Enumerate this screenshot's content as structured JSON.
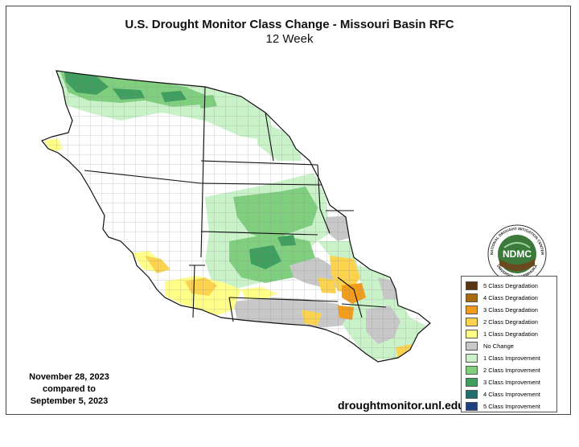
{
  "title": "U.S. Drought Monitor Class Change - Missouri Basin RFC",
  "subtitle": "12 Week",
  "date_compare": {
    "line1": "November 28, 2023",
    "line2": "compared to",
    "line3": "September 5, 2023"
  },
  "website": "droughtmonitor.unl.edu",
  "logo": {
    "center_text": "NDMC",
    "ring_text_top": "NATIONAL DROUGHT MITIGATION CENTER",
    "ring_text_bottom": "UNIVERSITY OF NEBRASKA"
  },
  "legend": [
    {
      "label": "5 Class Degradation",
      "color": "#5a3511"
    },
    {
      "label": "4 Class Degradation",
      "color": "#a8680e"
    },
    {
      "label": "3 Class Degradation",
      "color": "#f39c1b"
    },
    {
      "label": "2 Class Degradation",
      "color": "#fbd34e"
    },
    {
      "label": "1 Class Degradation",
      "color": "#ffff88"
    },
    {
      "label": "No Change",
      "color": "#c8c8c8"
    },
    {
      "label": "1 Class Improvement",
      "color": "#c9f2c9"
    },
    {
      "label": "2 Class Improvement",
      "color": "#7fcf7f"
    },
    {
      "label": "3 Class Improvement",
      "color": "#3f9f5f"
    },
    {
      "label": "4 Class Improvement",
      "color": "#1f6f6f"
    },
    {
      "label": "5 Class Improvement",
      "color": "#1f3f7f"
    }
  ],
  "colors": {
    "basin_background": "#ffffff",
    "county_lines": "#777777",
    "state_lines": "#111111"
  }
}
